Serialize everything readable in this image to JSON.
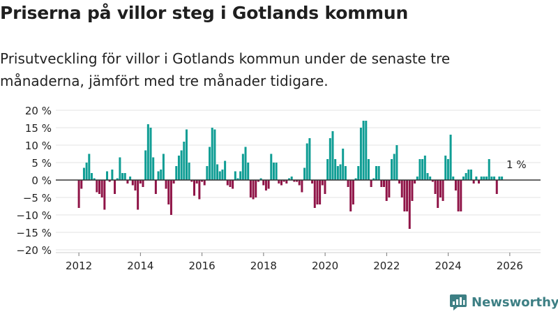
{
  "header": {
    "title": "Priserna på villor steg i Gotlands kommun",
    "subtitle": "Prisutveckling för villor i Gotlands kommun under de senaste tre månaderna, jämfört med tre månader tidigare."
  },
  "brand": {
    "name": "Newsworthy",
    "icon": "newsworthy-logo-icon",
    "color": "#3d7f84"
  },
  "colors": {
    "positive": "#0f9d94",
    "negative": "#8f1447",
    "zero_line": "#333333",
    "grid": "#e3e3e3"
  },
  "chart_data": {
    "type": "bar",
    "title": "Priserna på villor steg i Gotlands kommun",
    "xlabel": "",
    "ylabel": "",
    "ylim": [
      -20,
      20
    ],
    "yticks": [
      20,
      15,
      10,
      5,
      0,
      -5,
      -10,
      -15,
      -20
    ],
    "ytick_labels": [
      "20 %",
      "15 %",
      "10 %",
      "5 %",
      "0 %",
      "−5 %",
      "−10 %",
      "−15 %",
      "−20 %"
    ],
    "xlim": [
      2011.25,
      2027.0
    ],
    "xticks": [
      2012,
      2014,
      2016,
      2018,
      2020,
      2022,
      2024,
      2026
    ],
    "xtick_labels": [
      "2012",
      "2014",
      "2016",
      "2018",
      "2020",
      "2022",
      "2024",
      "2026"
    ],
    "annotation": {
      "text": "1 %",
      "x": 2025.8
    },
    "bar_width": 0.068,
    "x_start": 2012.0,
    "x_step": 0.0833,
    "values": [
      -8,
      -2.5,
      3.5,
      5,
      7.5,
      2,
      0.5,
      -3.5,
      -4,
      -5,
      -8.5,
      2.5,
      -0.5,
      3,
      -4,
      0.5,
      6.5,
      2,
      2,
      -1,
      1,
      -1.5,
      -3,
      -8.5,
      -1,
      -2,
      8.5,
      16,
      15,
      6.5,
      -4,
      2.5,
      3,
      7.5,
      -2.5,
      -7,
      -10,
      -1,
      4,
      7,
      8.5,
      11,
      14.5,
      5,
      -0.5,
      -4.5,
      -1,
      -5.5,
      -0.5,
      -1.5,
      4,
      9.5,
      15,
      14.5,
      4.5,
      2.5,
      3,
      5.5,
      -1.5,
      -2,
      -2.5,
      2.5,
      0.5,
      2.5,
      7.5,
      9.5,
      5,
      -5,
      -5.5,
      -5,
      -0.5,
      0.5,
      -1.5,
      -3,
      -2.5,
      7.5,
      5,
      5,
      -1,
      -1.5,
      -0.5,
      -1,
      0.5,
      1,
      -0.5,
      -0.5,
      -1.5,
      -3.5,
      3.5,
      10.5,
      12,
      -1,
      -8,
      -7,
      -7,
      -1.5,
      -4,
      6,
      12,
      14,
      6,
      4,
      4.5,
      9,
      4,
      -2,
      -9,
      -7,
      0.5,
      4,
      15,
      17,
      17,
      6,
      -2,
      0.5,
      4,
      4,
      -2,
      -2,
      -6,
      -5,
      6,
      7.5,
      10,
      -1,
      -5,
      -9,
      -9,
      -14,
      -6,
      -1,
      1,
      6,
      6,
      7,
      2,
      1,
      -0.5,
      -4,
      -8,
      -5,
      -6,
      7,
      6,
      13,
      1,
      -3,
      -9,
      -9,
      1,
      2,
      3,
      3,
      -1,
      1,
      -1,
      1,
      1,
      1,
      6,
      1,
      1,
      -4,
      1,
      1
    ]
  }
}
